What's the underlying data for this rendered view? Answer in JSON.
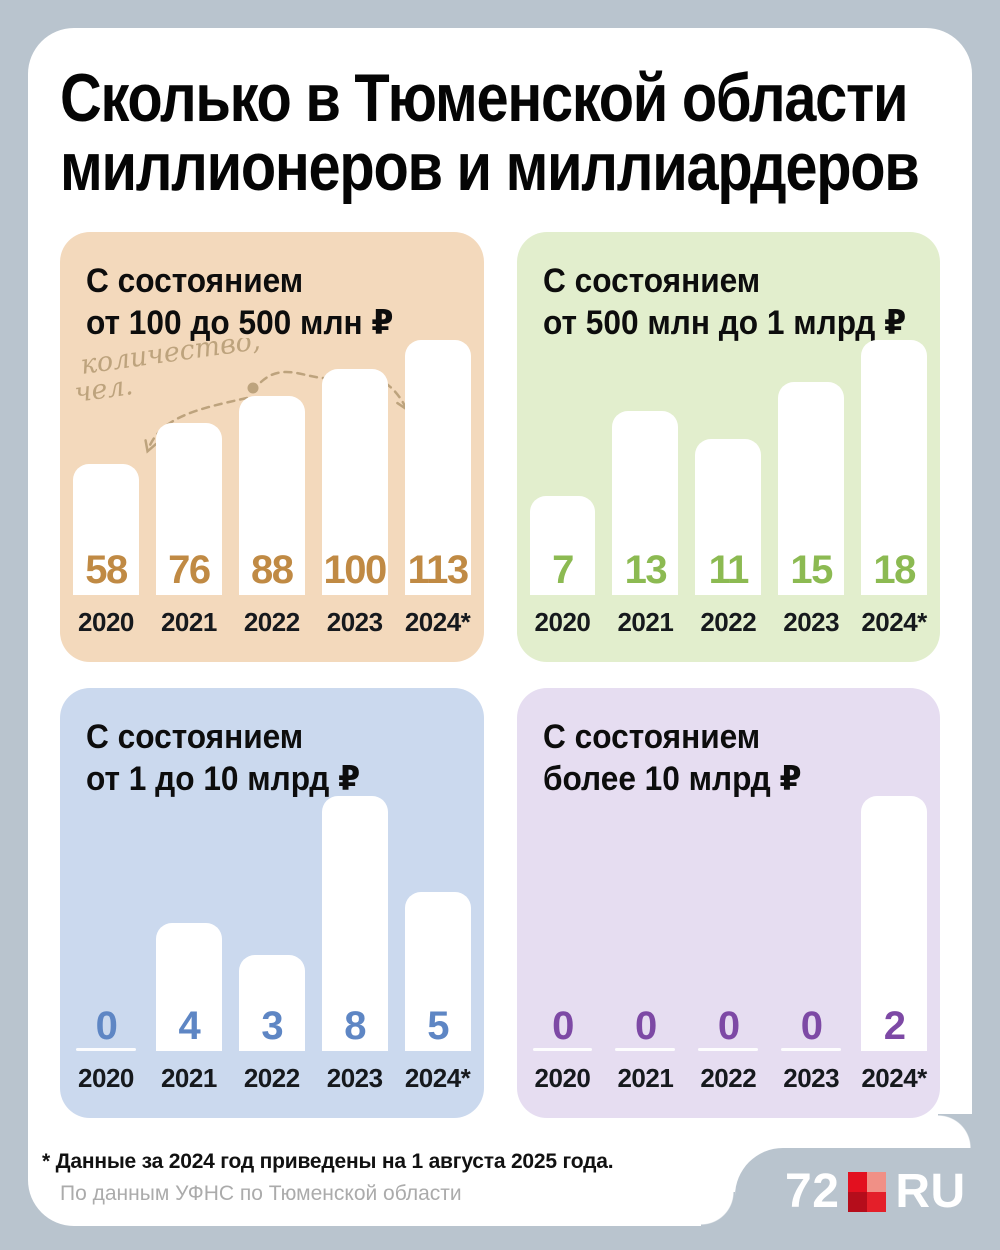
{
  "title": {
    "line1": "Сколько в Тюменской области",
    "line2": "миллионеров и миллиардеров"
  },
  "annotation": {
    "line1": "количество,",
    "line2": "чел."
  },
  "footer": {
    "note": "* Данные за 2024 год приведены на 1 августа 2025 года.",
    "source": "По данным УФНС по Тюменской области"
  },
  "logo": {
    "prefix": "72",
    "suffix": "RU"
  },
  "colors": {
    "page_bg": "#b9c4ce",
    "card_bg": "#ffffff",
    "annotation": "#bda37d",
    "year_text": "#16191d",
    "note_text": "#111111",
    "source_text": "#ababab",
    "logo_text": "#ffffff",
    "logo_red_tl": "#e3101f",
    "logo_red_tr": "#f09086",
    "logo_red_bl": "#b50d1b",
    "logo_red_br": "#e41f29"
  },
  "chart_data": [
    {
      "type": "bar",
      "title_line1": "С состоянием",
      "title_line2": "от 100 до 500 млн ₽",
      "categories": [
        "2020",
        "2021",
        "2022",
        "2023",
        "2024*"
      ],
      "values": [
        58,
        76,
        88,
        100,
        113
      ],
      "ylabel": "количество, чел.",
      "bg": "#f3d9bc",
      "accent": "#c08a44"
    },
    {
      "type": "bar",
      "title_line1": "С состоянием",
      "title_line2": "от 500 млн до 1 млрд ₽",
      "categories": [
        "2020",
        "2021",
        "2022",
        "2023",
        "2024*"
      ],
      "values": [
        7,
        13,
        11,
        15,
        18
      ],
      "ylabel": "количество, чел.",
      "bg": "#e2eecd",
      "accent": "#8cba52"
    },
    {
      "type": "bar",
      "title_line1": "С состоянием",
      "title_line2": "от 1 до 10 млрд ₽",
      "categories": [
        "2020",
        "2021",
        "2022",
        "2023",
        "2024*"
      ],
      "values": [
        0,
        4,
        3,
        8,
        5
      ],
      "ylabel": "количество, чел.",
      "bg": "#cbd9ee",
      "accent": "#5e86c4"
    },
    {
      "type": "bar",
      "title_line1": "С состоянием",
      "title_line2": "более 10 млрд ₽",
      "categories": [
        "2020",
        "2021",
        "2022",
        "2023",
        "2024*"
      ],
      "values": [
        0,
        0,
        0,
        0,
        2
      ],
      "ylabel": "количество, чел.",
      "bg": "#e6ddf1",
      "accent": "#7d49a5"
    }
  ]
}
